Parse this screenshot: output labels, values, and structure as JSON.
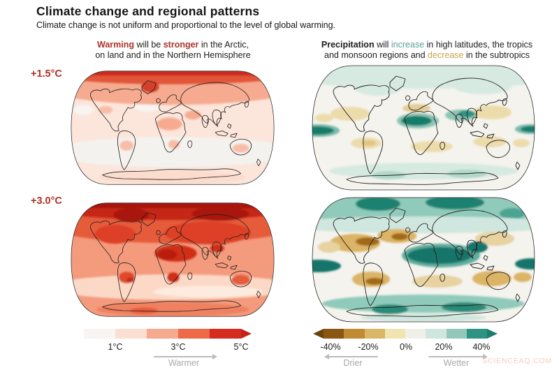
{
  "header": {
    "title": "Climate change and regional patterns",
    "subtitle": "Climate change is not uniform and proportional to the level of global warming."
  },
  "panels": {
    "warming": {
      "line1": [
        "Warming",
        " will be ",
        "stronger",
        " in the Arctic,"
      ],
      "line2": "on land and in the Northern Hemisphere"
    },
    "precipitation": {
      "line1": [
        "Precipitation",
        " will ",
        "increase",
        " in high latitudes, the tropics"
      ],
      "line2": [
        "and monsoon regions and ",
        "decrease",
        " in the subtropics"
      ]
    }
  },
  "scenarios": [
    {
      "label": "+1.5°C"
    },
    {
      "label": "+3.0°C"
    }
  ],
  "legends": {
    "temperature": {
      "ticks": [
        "1°C",
        "3°C",
        "5°C"
      ],
      "direction_label": "Warmer",
      "segments": [
        "#f7f4f1",
        "#fbdfd2",
        "#f5a98f",
        "#ee6a47",
        "#d62b1f"
      ],
      "tip": "#c42318"
    },
    "precipitation": {
      "ticks": [
        "-40%",
        "-20%",
        "0%",
        "20%",
        "40%"
      ],
      "drier_label": "Drier",
      "wetter_label": "Wetter",
      "segments": [
        "#8a5713",
        "#c28a33",
        "#dab667",
        "#f2e4b1",
        "#f0efe8",
        "#cfe6df",
        "#92c7ba",
        "#2f9383"
      ],
      "tip_left": "#6b430e",
      "tip_right": "#1c7c6d"
    }
  },
  "watermark": "SCIENCEAQ.COM",
  "colors": {
    "accent_red": "#ae3127",
    "accent_teal": "#57a195",
    "accent_gold": "#c8a34b",
    "text": "#1a1a1a",
    "muted_gray": "#a8a8a8",
    "watermark": "#f6cbc7"
  },
  "chart_data": [
    {
      "type": "heatmap",
      "kind": "world map, Robinson projection",
      "panel": "top-left",
      "scenario": "+1.5°C global warming",
      "variable": "Temperature change",
      "unit": "°C",
      "scale_min": 0,
      "scale_max": 5,
      "tick_values": [
        1,
        3,
        5
      ],
      "direction_label": "Warmer",
      "palette": [
        "#f7f4f1",
        "#fbdfd2",
        "#f5a98f",
        "#ee6a47",
        "#d62b1f"
      ],
      "pattern": "Moderate warming (1-2°C) over most oceans; 2-3°C over northern continents, Sahara and Middle East; 3-5°C in the Arctic; near 0-1°C over the Southern Ocean"
    },
    {
      "type": "heatmap",
      "kind": "world map, Robinson projection",
      "panel": "bottom-left",
      "scenario": "+3.0°C global warming",
      "variable": "Temperature change",
      "unit": "°C",
      "scale_min": 0,
      "scale_max": 5,
      "tick_values": [
        1,
        3,
        5
      ],
      "direction_label": "Warmer",
      "palette": [
        "#f7f4f1",
        "#fbdfd2",
        "#f5a98f",
        "#ee6a47",
        "#d62b1f"
      ],
      "pattern": "2-3°C over oceans; 3-5°C over most land; >5°C across the Arctic and northern high-latitude land; weakest (1-2°C) over the Southern Ocean"
    },
    {
      "type": "heatmap",
      "kind": "world map, Robinson projection",
      "panel": "top-right",
      "scenario": "+1.5°C global warming",
      "variable": "Precipitation change",
      "unit": "%",
      "scale_min": -40,
      "scale_max": 40,
      "tick_values": [
        -40,
        -20,
        0,
        20,
        40
      ],
      "negative_label": "Drier",
      "positive_label": "Wetter",
      "palette": [
        "#8a5713",
        "#c28a33",
        "#dab667",
        "#f2e4b1",
        "#f0efe8",
        "#cfe6df",
        "#92c7ba",
        "#2f9383"
      ],
      "pattern": "Mostly near 0%; slight increase (10-20%) in high latitudes; strong increase (>40%) along equatorial Pacific, Sahel and South Asia monsoon region; slight decrease (10-20%) in subtropical bands"
    },
    {
      "type": "heatmap",
      "kind": "world map, Robinson projection",
      "panel": "bottom-right",
      "scenario": "+3.0°C global warming",
      "variable": "Precipitation change",
      "unit": "%",
      "scale_min": -40,
      "scale_max": 40,
      "tick_values": [
        -40,
        -20,
        0,
        20,
        40
      ],
      "negative_label": "Drier",
      "positive_label": "Wetter",
      "palette": [
        "#8a5713",
        "#c28a33",
        "#dab667",
        "#f2e4b1",
        "#f0efe8",
        "#cfe6df",
        "#92c7ba",
        "#2f9383"
      ],
      "pattern": "Strong increase (20->40%) in Arctic, equatorial Pacific, Sahel, Arabia and South Asia; strong decrease (-20 to -40%) over North Atlantic/Mediterranean subtropics, subtropical South America, southern Africa and around Australia; increase around Antarctica"
    }
  ]
}
